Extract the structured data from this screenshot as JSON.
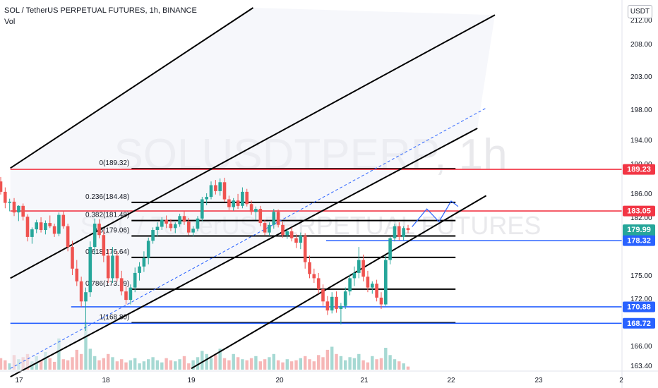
{
  "header": {
    "title": "SOL / TetherUS PERPETUAL FUTURES, 1h, BINANCE",
    "indicator": "Vol"
  },
  "currency_button": "USDT",
  "watermark": {
    "symbol": "SOLUSDTPERP, 1h",
    "description": "SOL / TetherUS PERPETUAL FUTURES"
  },
  "chart_data": {
    "type": "candlestick",
    "symbol": "SOLUSDTPERP",
    "timeframe": "1h",
    "exchange": "BINANCE",
    "y_axis": {
      "ticks": [
        212.0,
        208.0,
        203.0,
        198.0,
        194.0,
        190.0,
        186.0,
        182.0,
        178.0,
        175.0,
        172.0,
        169.0,
        166.0,
        163.4
      ],
      "tick_labels": [
        "212.00",
        "208.00",
        "203.00",
        "198.00",
        "194.00",
        "190.00",
        "186.00",
        "182.00",
        "178.00",
        "175.00",
        "172.00",
        "169.00",
        "166.00",
        "163.40"
      ],
      "ylim": [
        163.0,
        214.0
      ]
    },
    "x_axis": {
      "tick_labels": [
        "17",
        "18",
        "19",
        "20",
        "21",
        "22",
        "23",
        "2"
      ],
      "day_positions": [
        17,
        18,
        19,
        20,
        21,
        22,
        23,
        24
      ]
    },
    "price_labels": [
      {
        "value": 189.23,
        "label": "189.23",
        "color": "#f23645"
      },
      {
        "value": 183.05,
        "label": "183.05",
        "color": "#f23645"
      },
      {
        "value": 179.99,
        "label": "179.99",
        "sublabel": "55:53",
        "color": "#26a69a"
      },
      {
        "value": 178.32,
        "label": "178.32",
        "color": "#2962ff"
      },
      {
        "value": 170.88,
        "label": "170.88",
        "color": "#2962ff"
      },
      {
        "value": 168.72,
        "label": "168.72",
        "color": "#2962ff"
      }
    ],
    "horizontal_lines": [
      {
        "value": 189.23,
        "color": "#f23645",
        "from_day": 16.9
      },
      {
        "value": 183.05,
        "color": "#f23645",
        "from_day": 16.9
      },
      {
        "value": 178.32,
        "color": "#2962ff",
        "from_day": 20.55
      },
      {
        "value": 170.88,
        "color": "#2962ff",
        "from_day": 17.6
      },
      {
        "value": 168.72,
        "color": "#2962ff",
        "from_day": 16.9
      }
    ],
    "fibonacci": {
      "from_day": 18.3,
      "to_day": 22.05,
      "levels": [
        {
          "ratio": "0",
          "value": 189.32,
          "label": "0(189.32)"
        },
        {
          "ratio": "0.236",
          "value": 184.48,
          "label": "0.236(184.48)"
        },
        {
          "ratio": "0.382",
          "value": 181.48,
          "label": "0.382(181.48)"
        },
        {
          "ratio": "0.5",
          "value": 179.06,
          "label": "0.5(179.06)"
        },
        {
          "ratio": "0.618",
          "value": 176.64,
          "label": "0.618(176.64)"
        },
        {
          "ratio": "0.786",
          "value": 173.19,
          "label": "0.786(173.19)"
        },
        {
          "ratio": "1",
          "value": 168.8,
          "label": "1(168.80)"
        }
      ]
    },
    "trend_lines": [
      {
        "x1": 16.9,
        "y1": 189.4,
        "x2": 19.7,
        "y2": 214.0,
        "style": "solid",
        "color": "#000000"
      },
      {
        "x1": 16.9,
        "y1": 174.6,
        "x2": 22.5,
        "y2": 212.8,
        "style": "solid",
        "color": "#000000"
      },
      {
        "x1": 16.9,
        "y1": 161.9,
        "x2": 22.3,
        "y2": 195.5,
        "style": "solid",
        "color": "#000000"
      },
      {
        "x1": 16.9,
        "y1": 163.0,
        "x2": 22.4,
        "y2": 198.2,
        "style": "dashed",
        "color": "#2962ff"
      },
      {
        "x1": 19.0,
        "y1": 163.0,
        "x2": 22.4,
        "y2": 185.6,
        "style": "solid",
        "color": "#000000"
      }
    ],
    "projection_path": [
      {
        "x": 21.55,
        "y": 180.5
      },
      {
        "x": 21.72,
        "y": 183.4
      },
      {
        "x": 21.86,
        "y": 181.3
      },
      {
        "x": 22.0,
        "y": 184.7
      },
      {
        "x": 22.08,
        "y": 183.8
      }
    ],
    "candles": [
      [
        187.6,
        188.2,
        185.8,
        186.2
      ],
      [
        186.2,
        186.8,
        183.5,
        184.4
      ],
      [
        184.4,
        185.1,
        183.0,
        184.6
      ],
      [
        184.6,
        185.2,
        182.2,
        182.8
      ],
      [
        182.8,
        184.0,
        181.4,
        183.9
      ],
      [
        183.9,
        184.3,
        181.5,
        182.1
      ],
      [
        182.1,
        182.5,
        178.2,
        178.9
      ],
      [
        178.9,
        180.4,
        177.9,
        180.1
      ],
      [
        180.1,
        181.6,
        179.5,
        181.2
      ],
      [
        181.2,
        182.0,
        179.6,
        180.0
      ],
      [
        180.0,
        181.5,
        179.3,
        181.1
      ],
      [
        181.1,
        182.3,
        180.3,
        180.6
      ],
      [
        180.6,
        181.0,
        178.9,
        179.4
      ],
      [
        179.4,
        182.8,
        179.0,
        182.4
      ],
      [
        182.4,
        183.1,
        180.2,
        180.6
      ],
      [
        180.6,
        181.0,
        177.2,
        177.6
      ],
      [
        177.6,
        178.3,
        175.0,
        175.6
      ],
      [
        175.6,
        176.4,
        173.6,
        174.2
      ],
      [
        174.2,
        174.8,
        170.9,
        171.6
      ],
      [
        171.6,
        173.4,
        167.8,
        172.8
      ],
      [
        172.8,
        178.2,
        172.2,
        177.6
      ],
      [
        177.6,
        181.8,
        176.9,
        181.0
      ],
      [
        181.0,
        181.7,
        178.7,
        179.2
      ],
      [
        179.2,
        179.9,
        176.2,
        176.8
      ],
      [
        176.8,
        177.4,
        174.0,
        174.6
      ],
      [
        174.6,
        177.6,
        174.0,
        176.8
      ],
      [
        176.8,
        177.2,
        174.2,
        174.6
      ],
      [
        174.6,
        175.4,
        172.4,
        172.9
      ],
      [
        172.9,
        173.6,
        171.2,
        171.8
      ],
      [
        171.8,
        173.8,
        171.2,
        173.4
      ],
      [
        173.4,
        175.7,
        172.8,
        175.2
      ],
      [
        175.2,
        176.2,
        174.3,
        175.8
      ],
      [
        175.8,
        177.2,
        175.3,
        176.6
      ],
      [
        176.6,
        178.8,
        176.0,
        178.3
      ],
      [
        178.3,
        180.4,
        177.9,
        180.0
      ],
      [
        180.0,
        181.2,
        179.0,
        180.5
      ],
      [
        180.5,
        182.0,
        180.0,
        181.6
      ],
      [
        181.6,
        182.3,
        180.3,
        181.0
      ],
      [
        181.0,
        181.7,
        179.8,
        180.3
      ],
      [
        180.3,
        181.2,
        179.5,
        180.9
      ],
      [
        180.9,
        182.6,
        180.5,
        182.2
      ],
      [
        182.2,
        183.0,
        180.8,
        181.3
      ],
      [
        181.3,
        181.9,
        179.2,
        179.6
      ],
      [
        179.6,
        180.6,
        179.0,
        180.2
      ],
      [
        180.2,
        182.2,
        179.8,
        181.8
      ],
      [
        181.8,
        185.4,
        181.4,
        185.0
      ],
      [
        185.0,
        186.0,
        184.0,
        185.4
      ],
      [
        185.4,
        187.6,
        185.0,
        187.1
      ],
      [
        187.1,
        187.8,
        185.8,
        186.3
      ],
      [
        186.3,
        188.0,
        185.6,
        187.5
      ],
      [
        187.5,
        188.1,
        184.6,
        185.0
      ],
      [
        185.0,
        185.6,
        183.2,
        183.7
      ],
      [
        183.7,
        185.2,
        183.1,
        184.8
      ],
      [
        184.8,
        185.9,
        183.4,
        183.9
      ],
      [
        183.9,
        186.8,
        183.5,
        186.2
      ],
      [
        186.2,
        186.6,
        183.8,
        184.2
      ],
      [
        184.2,
        184.8,
        182.4,
        182.9
      ],
      [
        182.9,
        183.8,
        181.6,
        183.4
      ],
      [
        183.4,
        183.9,
        180.6,
        181.1
      ],
      [
        181.1,
        181.6,
        179.2,
        179.6
      ],
      [
        179.6,
        181.2,
        179.1,
        180.8
      ],
      [
        180.8,
        183.4,
        180.2,
        182.9
      ],
      [
        182.9,
        183.3,
        180.4,
        180.8
      ],
      [
        180.8,
        181.3,
        178.8,
        179.2
      ],
      [
        179.2,
        180.3,
        178.6,
        179.8
      ],
      [
        179.8,
        180.4,
        178.2,
        178.7
      ],
      [
        178.7,
        179.3,
        177.5,
        178.0
      ],
      [
        178.0,
        179.6,
        177.4,
        179.1
      ],
      [
        179.1,
        179.5,
        175.6,
        176.2
      ],
      [
        176.2,
        176.8,
        174.6,
        175.1
      ],
      [
        175.1,
        175.6,
        174.0,
        174.6
      ],
      [
        174.6,
        175.2,
        172.6,
        173.2
      ],
      [
        173.2,
        173.8,
        171.0,
        171.6
      ],
      [
        171.6,
        172.3,
        169.8,
        170.4
      ],
      [
        170.4,
        172.8,
        170.0,
        172.2
      ],
      [
        172.2,
        172.9,
        170.1,
        170.6
      ],
      [
        170.6,
        171.4,
        168.6,
        171.0
      ],
      [
        171.0,
        173.4,
        170.6,
        172.9
      ],
      [
        172.9,
        175.0,
        172.4,
        174.6
      ],
      [
        174.6,
        175.8,
        173.6,
        175.2
      ],
      [
        175.2,
        177.6,
        174.6,
        176.4
      ],
      [
        176.4,
        176.9,
        174.2,
        174.8
      ],
      [
        174.8,
        175.4,
        172.8,
        173.4
      ],
      [
        173.4,
        174.2,
        172.6,
        173.9
      ],
      [
        173.9,
        174.4,
        171.6,
        172.1
      ],
      [
        172.1,
        172.8,
        170.6,
        171.2
      ],
      [
        171.2,
        176.8,
        171.0,
        176.4
      ],
      [
        176.4,
        179.0,
        176.0,
        178.7
      ],
      [
        178.7,
        181.0,
        178.2,
        180.6
      ],
      [
        180.6,
        181.2,
        178.4,
        178.9
      ],
      [
        178.9,
        180.6,
        178.4,
        180.3
      ],
      [
        180.3,
        180.8,
        179.5,
        179.99
      ]
    ],
    "volumes": [
      22,
      18,
      12,
      28,
      20,
      24,
      30,
      16,
      26,
      18,
      34,
      22,
      15,
      60,
      20,
      18,
      24,
      38,
      30,
      92,
      40,
      26,
      18,
      22,
      30,
      24,
      16,
      20,
      14,
      18,
      22,
      12,
      16,
      20,
      24,
      18,
      14,
      22,
      18,
      16,
      20,
      26,
      12,
      18,
      24,
      36,
      30,
      22,
      28,
      40,
      22,
      18,
      30,
      24,
      20,
      18,
      22,
      26,
      16,
      20,
      24,
      30,
      18,
      14,
      20,
      16,
      18,
      22,
      26,
      20,
      16,
      28,
      24,
      38,
      44,
      30,
      26,
      18,
      24,
      22,
      30,
      18,
      14,
      26,
      20,
      22,
      42,
      28,
      20,
      16,
      12,
      6
    ]
  }
}
